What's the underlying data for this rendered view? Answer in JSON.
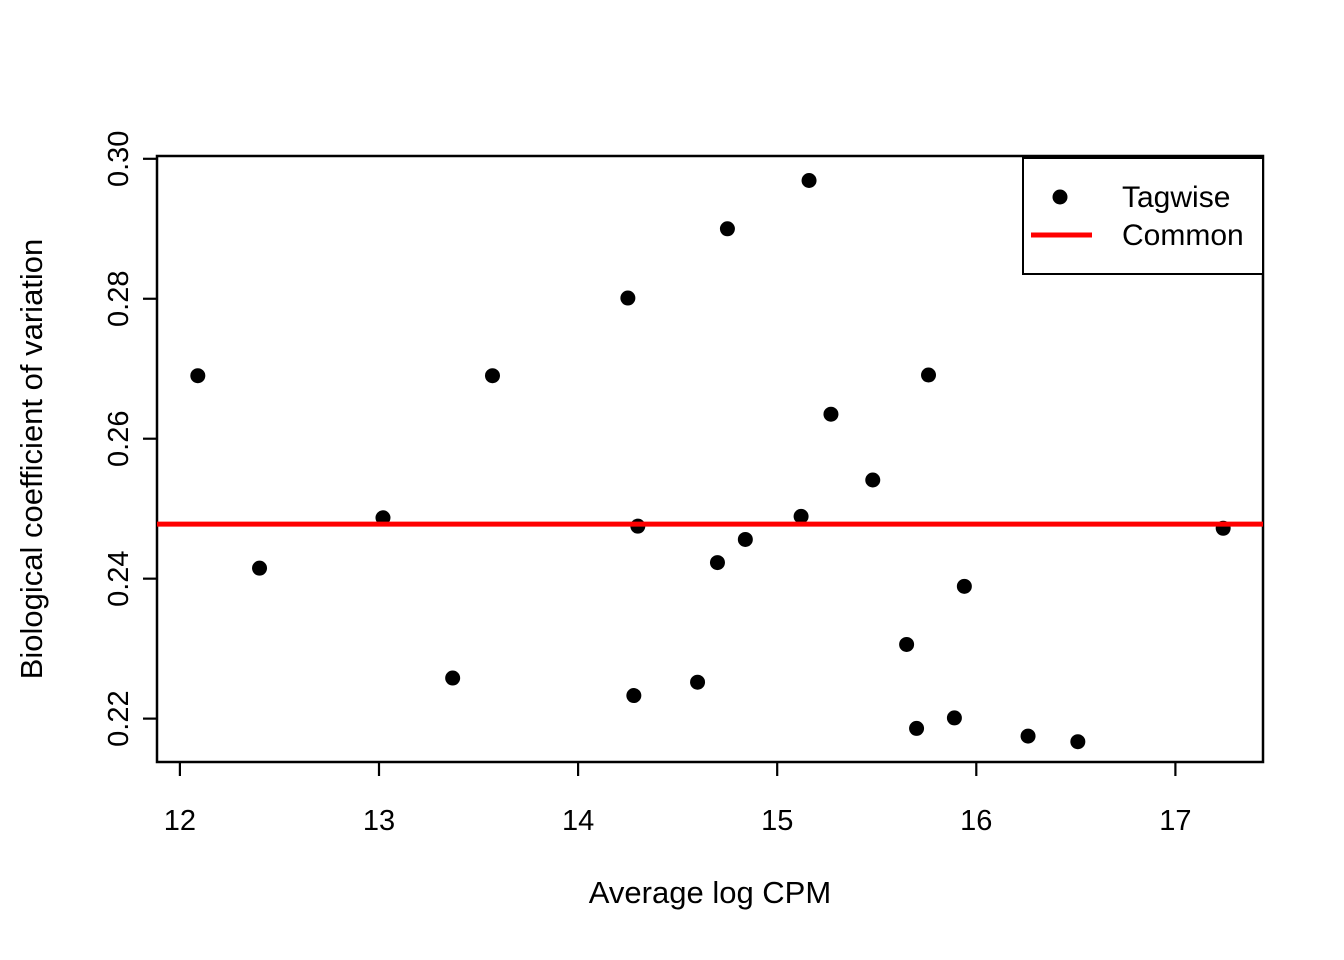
{
  "figure": {
    "background_color": "#FFFFFF",
    "foreground_color": "#000000"
  },
  "chart_data": {
    "type": "scatter",
    "title": "",
    "xlabel": "Average log CPM",
    "ylabel": "Biological coefficient of variation",
    "xlim": [
      11.885,
      17.44
    ],
    "ylim": [
      0.2138,
      0.3004
    ],
    "x_tick_values": [
      12,
      13,
      14,
      15,
      16,
      17
    ],
    "x_tick_labels": [
      "12",
      "13",
      "14",
      "15",
      "16",
      "17"
    ],
    "y_tick_values": [
      0.22,
      0.24,
      0.26,
      0.28,
      0.3
    ],
    "y_tick_labels": [
      "0.22",
      "0.24",
      "0.26",
      "0.28",
      "0.30"
    ],
    "grid": false,
    "series": [
      {
        "name": "Tagwise",
        "type": "scatter",
        "marker": "filled-circle",
        "color": "#000000",
        "points": [
          [
            12.09,
            0.269
          ],
          [
            12.4,
            0.2415
          ],
          [
            13.02,
            0.2487
          ],
          [
            13.37,
            0.2258
          ],
          [
            13.57,
            0.269
          ],
          [
            14.25,
            0.2801
          ],
          [
            14.28,
            0.2233
          ],
          [
            14.3,
            0.2475
          ],
          [
            14.6,
            0.2252
          ],
          [
            14.7,
            0.2423
          ],
          [
            14.75,
            0.29
          ],
          [
            14.84,
            0.2456
          ],
          [
            15.12,
            0.2489
          ],
          [
            15.16,
            0.2969
          ],
          [
            15.27,
            0.2635
          ],
          [
            15.48,
            0.2541
          ],
          [
            15.65,
            0.2306
          ],
          [
            15.7,
            0.2186
          ],
          [
            15.76,
            0.2691
          ],
          [
            15.89,
            0.2201
          ],
          [
            15.94,
            0.2389
          ],
          [
            16.26,
            0.2175
          ],
          [
            16.51,
            0.2167
          ],
          [
            17.24,
            0.2472
          ]
        ]
      },
      {
        "name": "Common",
        "type": "hline",
        "color": "#FF0000",
        "y": 0.2478
      }
    ],
    "legend": {
      "position": "top-right",
      "entries": [
        {
          "label": "Tagwise",
          "marker": "point",
          "color": "#000000"
        },
        {
          "label": "Common",
          "marker": "line",
          "color": "#FF0000"
        }
      ]
    }
  }
}
